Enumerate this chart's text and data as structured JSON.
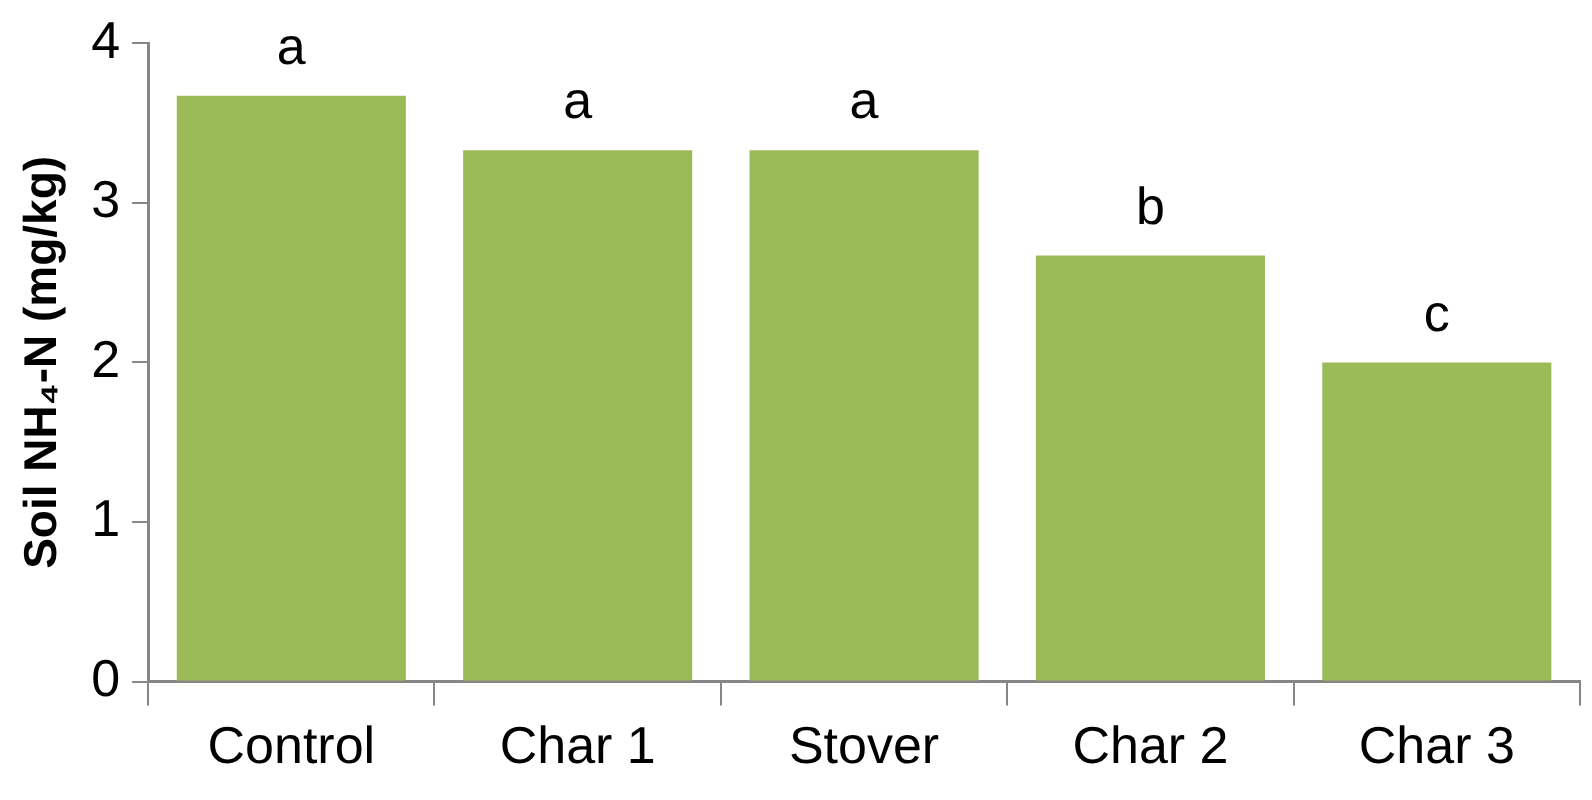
{
  "chart_data": {
    "type": "bar",
    "ylabel": "Soil NH₄-N (mg/kg)",
    "categories": [
      "Control",
      "Char 1",
      "Stover",
      "Char 2",
      "Char 3"
    ],
    "values": [
      3.67,
      3.33,
      3.33,
      2.67,
      2.0
    ],
    "color": "#9bbb59",
    "ylim": [
      0,
      4
    ],
    "yticks": [
      0,
      1,
      2,
      3,
      4
    ],
    "grid": false,
    "legend": false,
    "annotations": [
      {
        "text": "a",
        "x": "Control",
        "y": 3.67
      },
      {
        "text": "a",
        "x": "Char 1",
        "y": 3.33
      },
      {
        "text": "a",
        "x": "Stover",
        "y": 3.33
      },
      {
        "text": "b",
        "x": "Char 2",
        "y": 2.67
      },
      {
        "text": "c",
        "x": "Char 3",
        "y": 2.0
      }
    ]
  }
}
